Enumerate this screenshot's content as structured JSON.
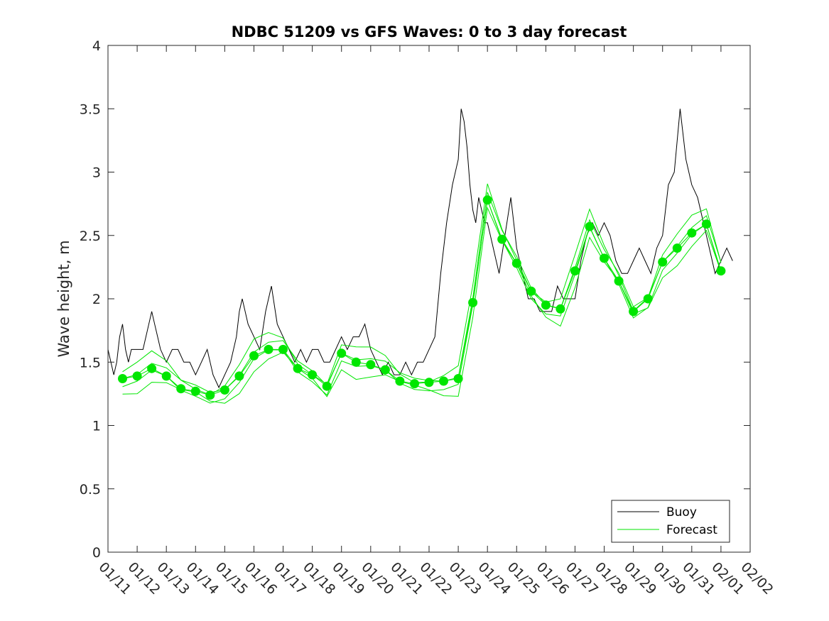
{
  "chart_data": {
    "type": "line",
    "title": "NDBC 51209 vs GFS Waves: 0 to 3 day forecast",
    "xlabel": "",
    "ylabel": "Wave height, m",
    "x_tick_labels": [
      "01/11",
      "01/12",
      "01/13",
      "01/14",
      "01/15",
      "01/16",
      "01/17",
      "01/18",
      "01/19",
      "01/20",
      "01/21",
      "01/22",
      "01/23",
      "01/24",
      "01/25",
      "01/26",
      "01/27",
      "01/28",
      "01/29",
      "01/30",
      "01/31",
      "02/01",
      "02/02"
    ],
    "xlim_days": [
      0,
      22
    ],
    "ylim": [
      0,
      4
    ],
    "y_ticks": [
      "0",
      "0.5",
      "1",
      "1.5",
      "2",
      "2.5",
      "3",
      "3.5",
      "4"
    ],
    "grid": false,
    "legend_position": "bottom-right",
    "colors": {
      "buoy": "#000000",
      "forecast": "#00e600",
      "axis": "#262626"
    },
    "series": [
      {
        "name": "Buoy",
        "x_days": [
          0,
          0.2,
          0.3,
          0.4,
          0.5,
          0.6,
          0.7,
          0.8,
          0.9,
          1.0,
          1.2,
          1.4,
          1.5,
          1.6,
          1.7,
          1.8,
          2.0,
          2.2,
          2.4,
          2.6,
          2.8,
          3.0,
          3.2,
          3.4,
          3.5,
          3.6,
          3.8,
          4.0,
          4.2,
          4.4,
          4.5,
          4.6,
          4.8,
          5.0,
          5.2,
          5.4,
          5.6,
          5.8,
          6.0,
          6.2,
          6.4,
          6.6,
          6.8,
          7.0,
          7.2,
          7.4,
          7.6,
          7.8,
          8.0,
          8.2,
          8.4,
          8.6,
          8.8,
          9.0,
          9.2,
          9.4,
          9.6,
          9.8,
          10.0,
          10.2,
          10.4,
          10.6,
          10.8,
          11.0,
          11.2,
          11.4,
          11.6,
          11.8,
          12.0,
          12.1,
          12.2,
          12.3,
          12.4,
          12.5,
          12.6,
          12.7,
          12.8,
          12.9,
          13.0,
          13.2,
          13.4,
          13.6,
          13.8,
          14.0,
          14.2,
          14.4,
          14.6,
          14.8,
          15.0,
          15.2,
          15.4,
          15.6,
          15.8,
          16.0,
          16.2,
          16.4,
          16.6,
          16.8,
          17.0,
          17.2,
          17.4,
          17.6,
          17.8,
          18.0,
          18.2,
          18.4,
          18.6,
          18.8,
          19.0,
          19.2,
          19.4,
          19.6,
          19.8,
          20.0,
          20.2,
          20.4,
          20.6,
          20.8,
          21.0,
          21.2,
          21.4
        ],
        "values": [
          1.6,
          1.4,
          1.5,
          1.7,
          1.8,
          1.6,
          1.5,
          1.6,
          1.6,
          1.6,
          1.6,
          1.8,
          1.9,
          1.8,
          1.7,
          1.6,
          1.5,
          1.6,
          1.6,
          1.5,
          1.5,
          1.4,
          1.5,
          1.6,
          1.5,
          1.4,
          1.3,
          1.4,
          1.5,
          1.7,
          1.9,
          2.0,
          1.8,
          1.7,
          1.6,
          1.9,
          2.1,
          1.8,
          1.7,
          1.6,
          1.5,
          1.6,
          1.5,
          1.6,
          1.6,
          1.5,
          1.5,
          1.6,
          1.7,
          1.6,
          1.7,
          1.7,
          1.8,
          1.6,
          1.5,
          1.4,
          1.5,
          1.4,
          1.4,
          1.5,
          1.4,
          1.5,
          1.5,
          1.6,
          1.7,
          2.2,
          2.6,
          2.9,
          3.1,
          3.5,
          3.4,
          3.2,
          2.9,
          2.7,
          2.6,
          2.8,
          2.7,
          2.6,
          2.6,
          2.4,
          2.2,
          2.5,
          2.8,
          2.4,
          2.2,
          2.0,
          2.0,
          1.9,
          1.9,
          1.9,
          2.1,
          2.0,
          2.0,
          2.0,
          2.3,
          2.5,
          2.6,
          2.5,
          2.6,
          2.5,
          2.3,
          2.2,
          2.2,
          2.3,
          2.4,
          2.3,
          2.2,
          2.4,
          2.5,
          2.9,
          3.0,
          3.5,
          3.1,
          2.9,
          2.8,
          2.6,
          2.4,
          2.2,
          2.3,
          2.4,
          2.3
        ],
        "color": "#000000"
      },
      {
        "name": "Forecast",
        "x_days": [
          0.5,
          1.0,
          1.5,
          2.0,
          2.5,
          3.0,
          3.5,
          4.0,
          4.5,
          5.0,
          5.5,
          6.0,
          6.5,
          7.0,
          7.5,
          8.0,
          8.5,
          9.0,
          9.5,
          10.0,
          10.5,
          11.0,
          11.5,
          12.0,
          12.5,
          13.0,
          13.5,
          14.0,
          14.5,
          15.0,
          15.5,
          16.0,
          16.5,
          17.0,
          17.5,
          18.0,
          18.5,
          19.0,
          19.5,
          20.0,
          20.5,
          21.0
        ],
        "values": [
          1.37,
          1.39,
          1.45,
          1.39,
          1.29,
          1.27,
          1.24,
          1.28,
          1.39,
          1.55,
          1.6,
          1.6,
          1.45,
          1.4,
          1.31,
          1.57,
          1.5,
          1.48,
          1.44,
          1.35,
          1.33,
          1.34,
          1.35,
          1.37,
          1.97,
          2.78,
          2.47,
          2.28,
          2.06,
          1.95,
          1.92,
          2.22,
          2.57,
          2.32,
          2.14,
          1.9,
          2.0,
          2.29,
          2.4,
          2.52,
          2.59,
          2.22
        ],
        "color": "#00e600"
      }
    ]
  }
}
